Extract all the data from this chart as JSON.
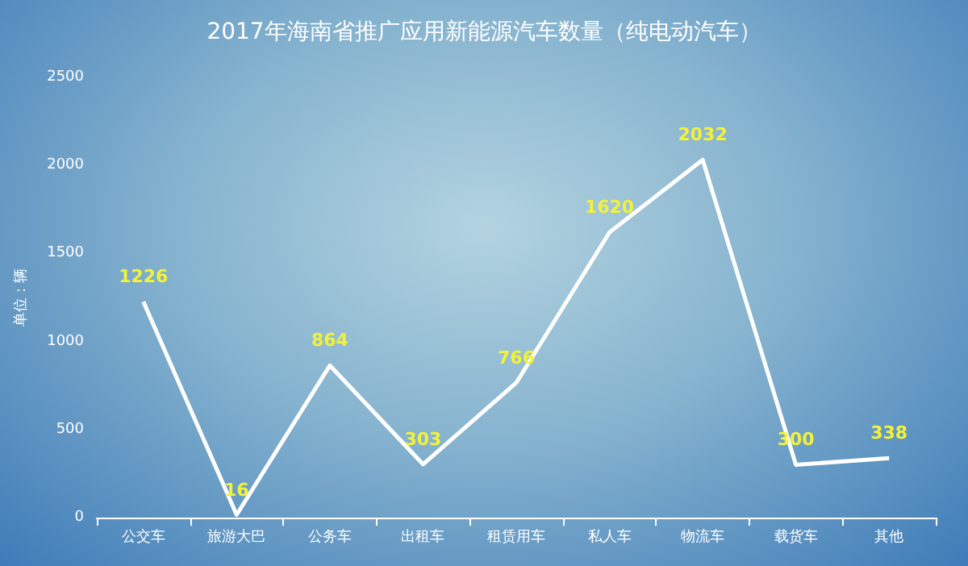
{
  "chart_data": {
    "type": "line",
    "title": "2017年海南省推广应用新能源汽车数量（纯电动汽车）",
    "ylabel": "单位：辆",
    "categories": [
      "公交车",
      "旅游大巴",
      "公务车",
      "出租车",
      "租赁用车",
      "私人车",
      "物流车",
      "载货车",
      "其他"
    ],
    "values": [
      1226,
      16,
      864,
      303,
      766,
      1620,
      2032,
      300,
      338
    ],
    "color": "#ffffff",
    "ylim": [
      0,
      2500
    ],
    "yticks": [
      0,
      500,
      1000,
      1500,
      2000,
      2500
    ],
    "grid": false,
    "marker": "none",
    "line_style": "solid",
    "data_labels": true
  }
}
